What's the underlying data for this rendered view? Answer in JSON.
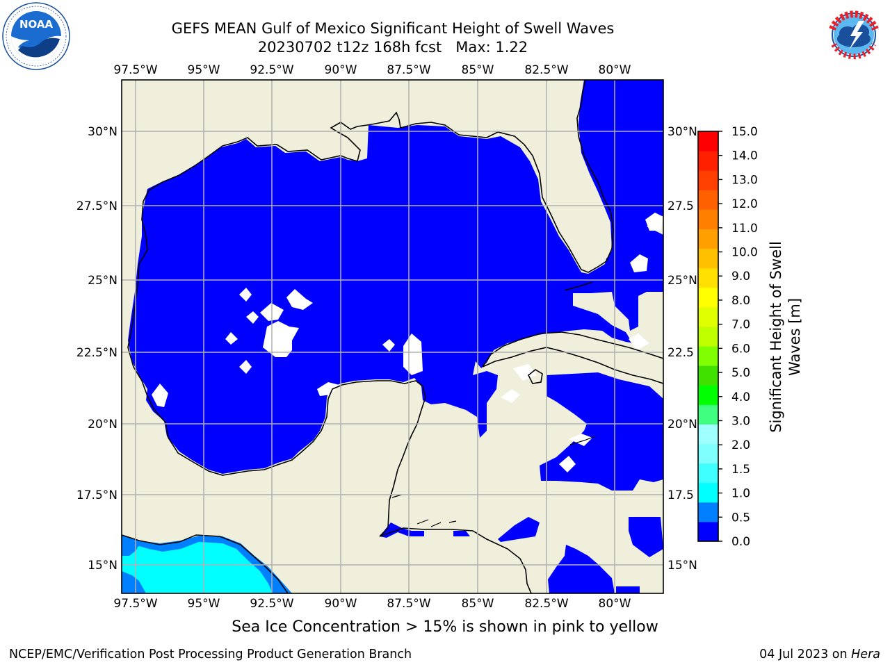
{
  "header": {
    "title_line1": "GEFS MEAN Gulf of Mexico Significant Height of Swell Waves",
    "title_line2": "20230702 t12z 168h fcst   Max: 1.22"
  },
  "logos": {
    "left": {
      "name": "NOAA",
      "ring_text": "NATIONAL OCEANIC AND ATMOSPHERIC ADMINISTRATION · U.S. DEPARTMENT OF COMMERCE"
    },
    "right": {
      "name": "NATIONAL WEATHER SERVICE"
    }
  },
  "map": {
    "lon_labels": [
      "97.5°W",
      "95°W",
      "92.5°W",
      "90°W",
      "87.5°W",
      "85°W",
      "82.5°W",
      "80°W"
    ],
    "lat_labels_left": [
      "30°N",
      "27.5°N",
      "25°N",
      "22.5°N",
      "20°N",
      "17.5°N",
      "15°N"
    ],
    "lat_labels_right": [
      "30°N",
      "27.5",
      "25°N",
      "22.5",
      "20°N",
      "17.5",
      "15°N"
    ],
    "colors": {
      "ocean": "#0000ff",
      "land": "#efefdc",
      "grid": "#b0b0b0"
    }
  },
  "colorbar": {
    "label_line1": "Significant Height of Swell",
    "label_line2": "Waves [m]",
    "ticks": [
      "15.0",
      "14.0",
      "13.0",
      "12.0",
      "11.0",
      "10.0",
      "9.0",
      "8.0",
      "7.0",
      "6.0",
      "5.0",
      "4.0",
      "3.0",
      "2.0",
      "1.5",
      "1.0",
      "0.5",
      "0.0"
    ],
    "colors": [
      "#0000ff",
      "#0080ff",
      "#00ffff",
      "#40ffff",
      "#80ffff",
      "#a0ffff",
      "#40ff80",
      "#00ff00",
      "#40e000",
      "#80ff00",
      "#c0ff00",
      "#e0ff00",
      "#ffff00",
      "#ffe000",
      "#ffc000",
      "#ffa000",
      "#ff8000",
      "#ff6000",
      "#ff4000",
      "#ff2000",
      "#ff0000"
    ]
  },
  "note": "Sea Ice Concentration > 15% is shown in pink to yellow",
  "footer": {
    "left": "NCEP/EMC/Verification Post Processing Product Generation Branch",
    "right_prefix": "04 Jul 2023 on ",
    "right_host": "Hera"
  }
}
